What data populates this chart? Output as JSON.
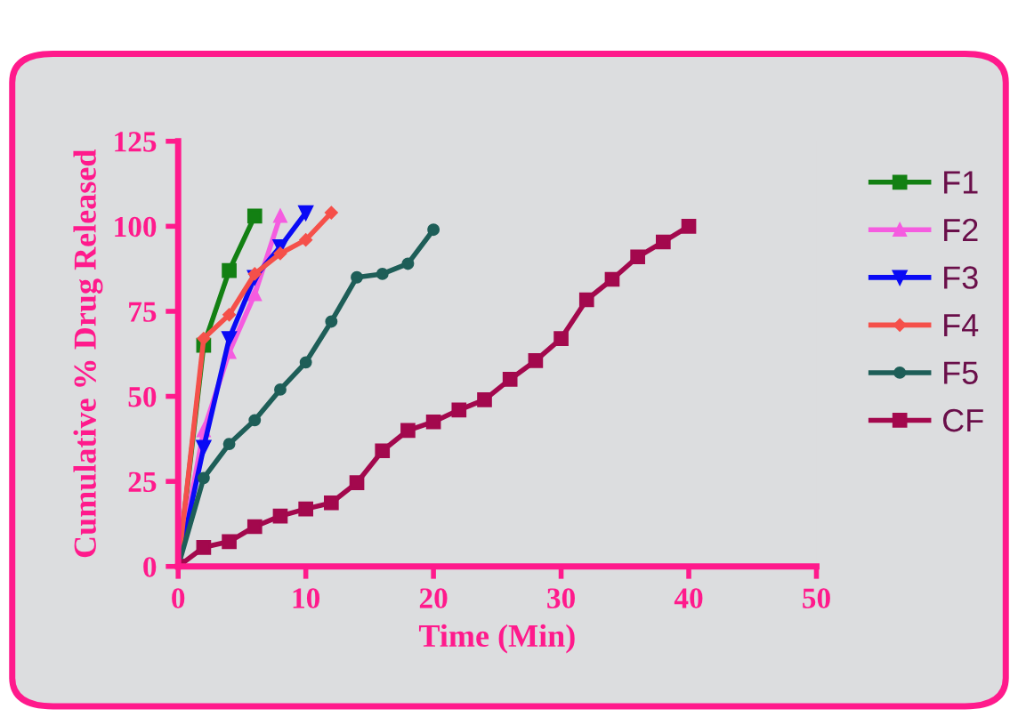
{
  "chart_data": {
    "type": "line",
    "xlabel": "Time (Min)",
    "ylabel": "Cumulative % Drug Released",
    "xlim": [
      0,
      50
    ],
    "xticks": [
      0,
      10,
      20,
      30,
      40,
      50
    ],
    "ylim": [
      0,
      125
    ],
    "yticks": [
      0,
      25,
      50,
      75,
      100,
      125
    ],
    "grid": false,
    "legend": "right",
    "series": [
      {
        "name": "F1",
        "color": "#138013",
        "marker": "square",
        "x": [
          0,
          2,
          4,
          6
        ],
        "values": [
          0,
          65,
          87,
          103
        ]
      },
      {
        "name": "F2",
        "color": "#f55ce0",
        "marker": "triangle",
        "x": [
          0,
          2,
          4,
          6,
          8
        ],
        "values": [
          0,
          40,
          63,
          80,
          103
        ]
      },
      {
        "name": "F3",
        "color": "#0a0af5",
        "marker": "triangle_down",
        "x": [
          0,
          2,
          4,
          6,
          8,
          10
        ],
        "values": [
          0,
          35,
          67,
          85,
          94,
          104
        ]
      },
      {
        "name": "F4",
        "color": "#f5504a",
        "marker": "diamond",
        "x": [
          0,
          2,
          4,
          6,
          8,
          10,
          12
        ],
        "values": [
          0,
          67,
          74,
          86,
          92,
          96,
          104
        ]
      },
      {
        "name": "F5",
        "color": "#1e5e58",
        "marker": "circle",
        "x": [
          0,
          2,
          4,
          6,
          8,
          10,
          12,
          14,
          16,
          18,
          20
        ],
        "values": [
          0,
          26,
          36,
          43,
          52,
          60,
          72,
          85,
          86,
          89,
          99
        ]
      },
      {
        "name": "CF",
        "color": "#a3084d",
        "marker": "square",
        "x": [
          0,
          2,
          4,
          6,
          8,
          10,
          12,
          14,
          16,
          18,
          20,
          22,
          24,
          26,
          28,
          30,
          32,
          34,
          36,
          38,
          40
        ],
        "values": [
          0,
          5.6,
          7.3,
          11.7,
          14.8,
          16.9,
          18.7,
          24.6,
          34,
          40,
          42.5,
          46,
          49,
          55,
          60.5,
          67,
          78.4,
          84.4,
          91,
          95.4,
          100
        ]
      }
    ]
  }
}
